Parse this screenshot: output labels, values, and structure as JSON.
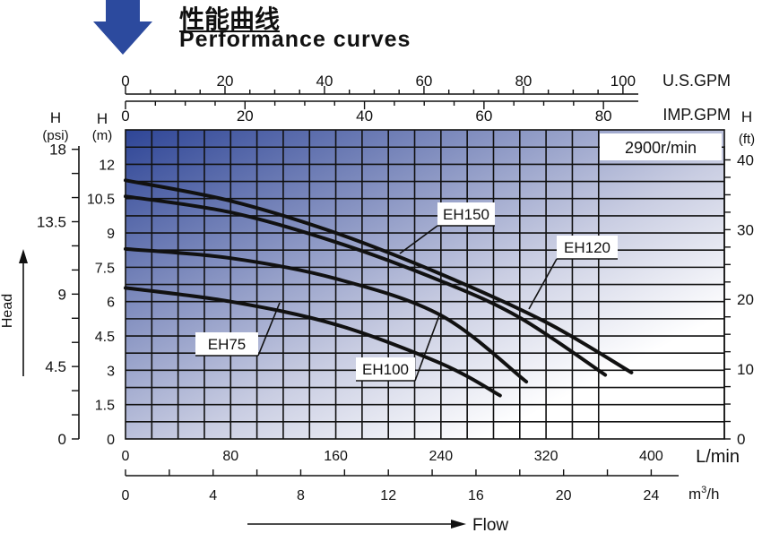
{
  "header": {
    "title_cn": "性能曲线",
    "title_en": "Performance curves"
  },
  "chart_data": {
    "type": "line",
    "title": "Performance curves",
    "speed_label": "2900r/min",
    "x_primary": {
      "unit": "L/min",
      "ticks": [
        "0",
        "80",
        "160",
        "240",
        "320",
        "400"
      ],
      "range": [
        0,
        400
      ]
    },
    "x_secondary_axes": [
      {
        "unit": "m³/h",
        "unit_base": "m",
        "unit_sup": "3",
        "unit_tail": "/h",
        "ticks": [
          "0",
          "4",
          "8",
          "12",
          "16",
          "20",
          "24"
        ],
        "per_unit_lpm": 16.667
      },
      {
        "unit": "IMP.GPM",
        "ticks": [
          "0",
          "20",
          "40",
          "60",
          "80"
        ],
        "per_unit_lpm": 4.546
      },
      {
        "unit": "U.S.GPM",
        "ticks": [
          "0",
          "20",
          "40",
          "60",
          "80",
          "100"
        ],
        "per_unit_lpm": 3.785
      }
    ],
    "y_primary": {
      "label_top": "H",
      "unit": "(m)",
      "ticks": [
        "0",
        "1.5",
        "3",
        "4.5",
        "6",
        "7.5",
        "9",
        "10.5",
        "12"
      ],
      "range": [
        0,
        13.5
      ]
    },
    "y_left_psi": {
      "label_top": "H",
      "unit": "(psi)",
      "ticks": [
        "0",
        "4.5",
        "9",
        "13.5",
        "18"
      ]
    },
    "y_right_ft": {
      "label_top": "H",
      "unit": "(ft)",
      "ticks": [
        "0",
        "10",
        "20",
        "30",
        "40"
      ]
    },
    "ylabel": "Head",
    "xlabel": "Flow",
    "grid": true,
    "series": [
      {
        "name": "EH150",
        "flow_lpm": [
          0,
          80,
          160,
          240,
          320,
          385
        ],
        "head_m": [
          11.3,
          10.4,
          9.0,
          7.2,
          5.1,
          2.9
        ]
      },
      {
        "name": "EH120",
        "flow_lpm": [
          0,
          80,
          160,
          240,
          300,
          365
        ],
        "head_m": [
          10.6,
          9.9,
          8.6,
          6.9,
          5.3,
          2.8
        ]
      },
      {
        "name": "EH100",
        "flow_lpm": [
          0,
          80,
          160,
          240,
          305
        ],
        "head_m": [
          8.3,
          7.9,
          7.0,
          5.4,
          2.5
        ]
      },
      {
        "name": "EH75",
        "flow_lpm": [
          0,
          80,
          160,
          240,
          285
        ],
        "head_m": [
          6.6,
          6.0,
          5.0,
          3.3,
          1.9
        ]
      }
    ]
  }
}
